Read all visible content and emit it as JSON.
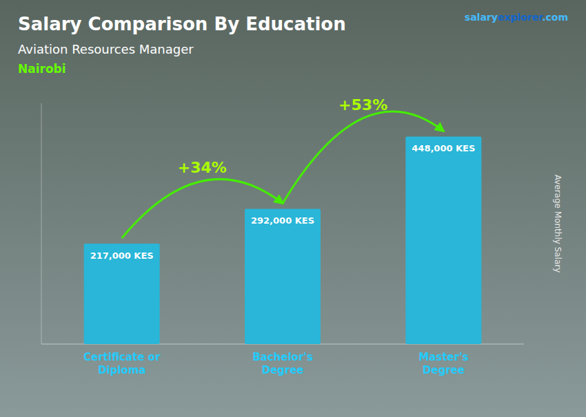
{
  "chart_data": {
    "type": "bar",
    "title": "Salary Comparison By Education",
    "subtitle": "Aviation Resources Manager",
    "location": "Nairobi",
    "y_label": "Average Monthly Salary",
    "brand": [
      "salary",
      "explorer",
      ".com"
    ],
    "categories": [
      "Certificate or\nDiploma",
      "Bachelor's\nDegree",
      "Master's\nDegree"
    ],
    "values": [
      217000,
      292000,
      448000
    ],
    "value_labels": [
      "217,000 KES",
      "292,000 KES",
      "448,000 KES"
    ],
    "data_labels": true,
    "annotations": [
      "+34%",
      "+53%"
    ],
    "color": "#29b6d8",
    "ylim": [
      0,
      520000
    ],
    "tick_labels": "x",
    "grid": false
  }
}
